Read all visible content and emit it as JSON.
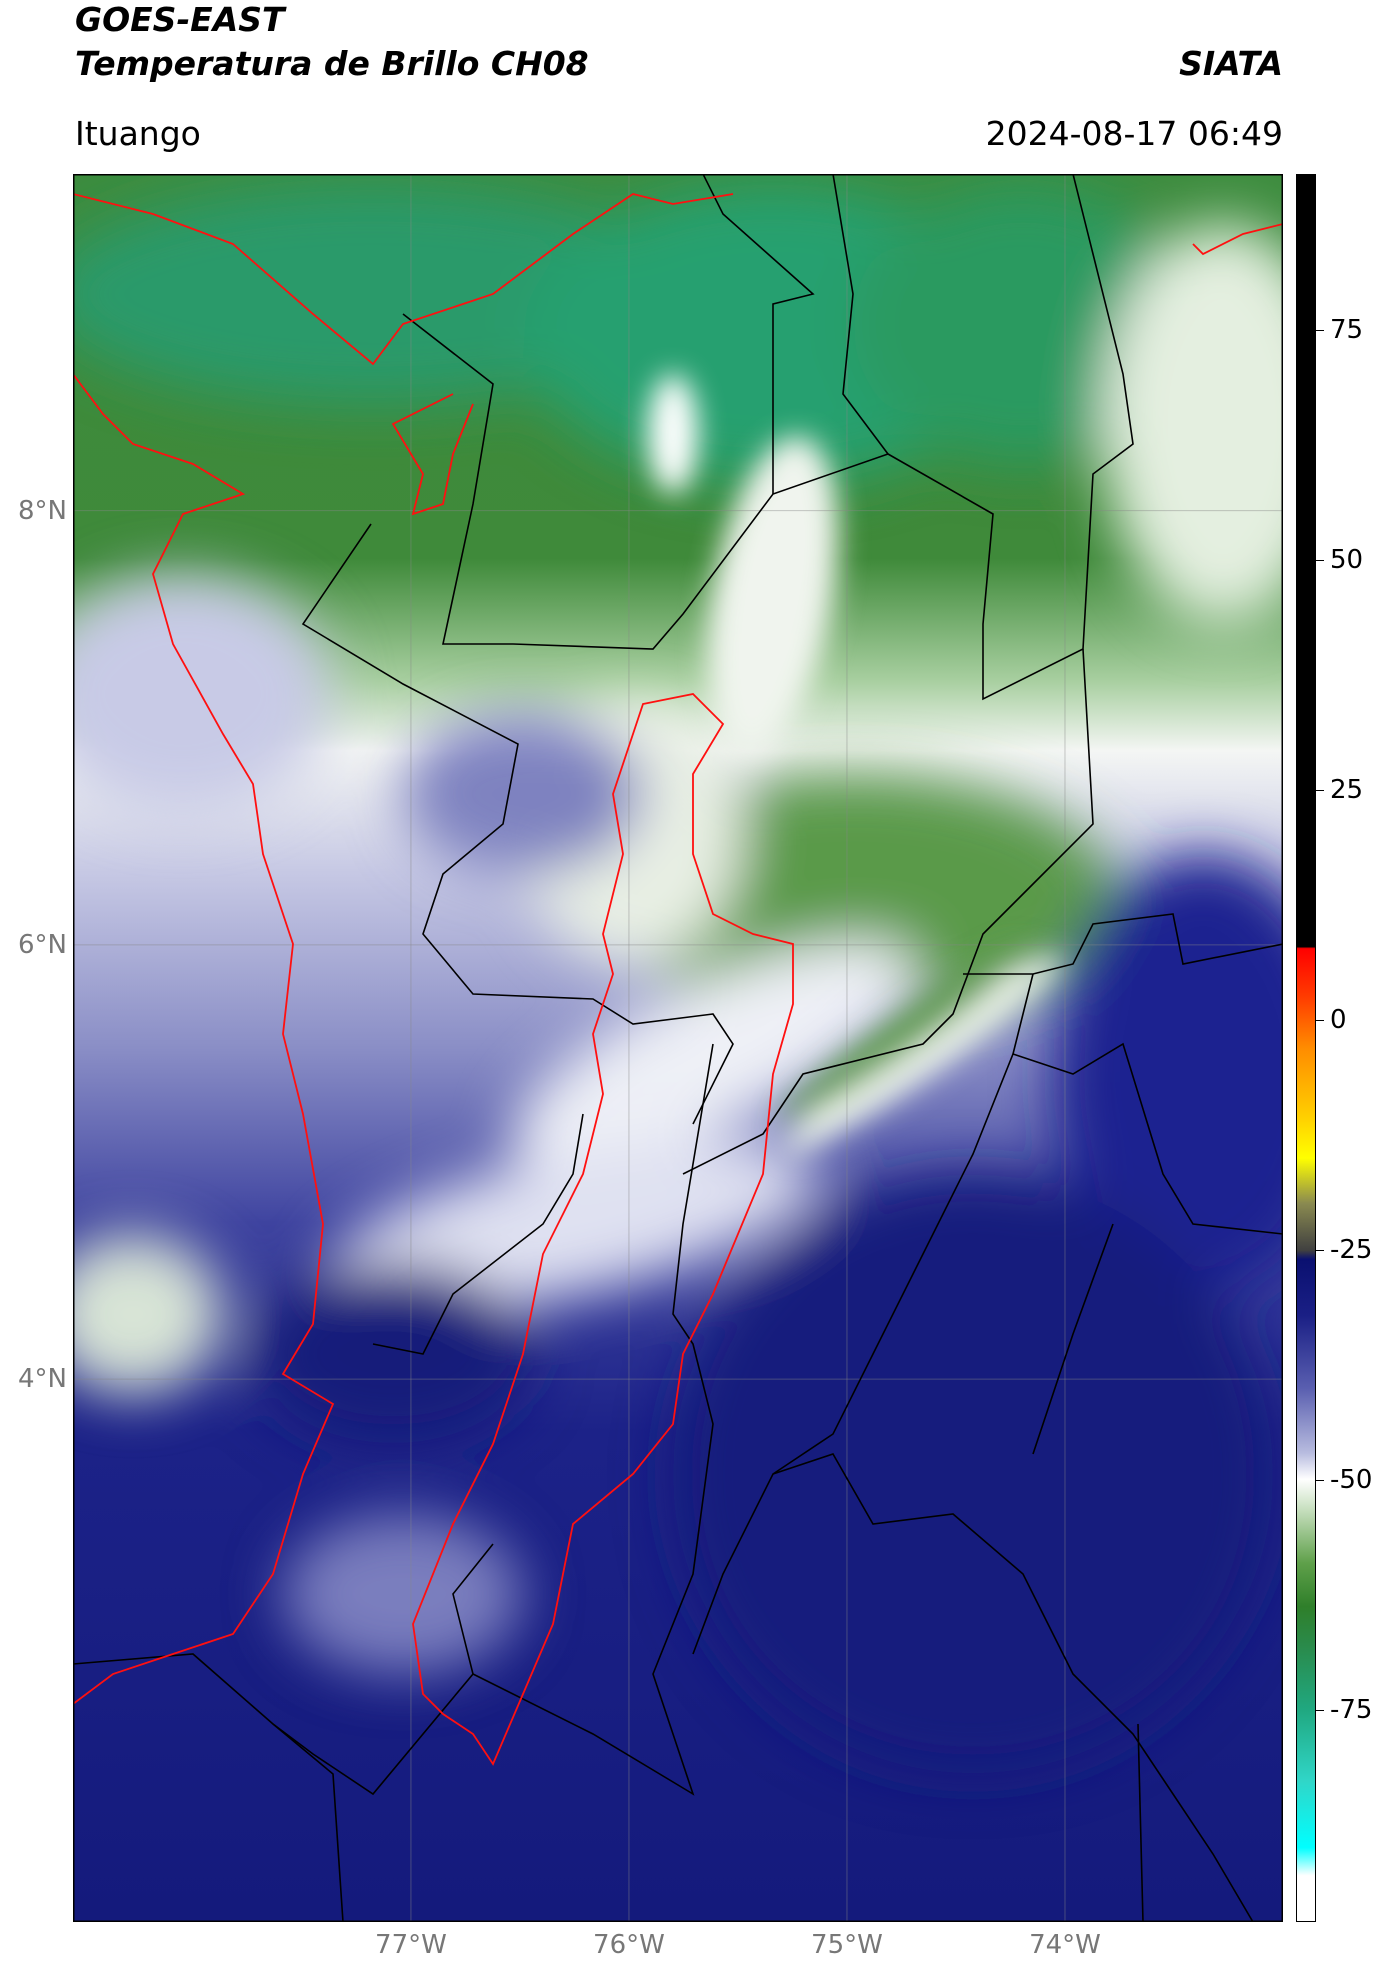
{
  "header": {
    "title": "GOES-EAST",
    "subtitle": "Temperatura de Brillo CH08",
    "brand": "SIATA",
    "location": "Ituango",
    "datetime": "2024-08-17 06:49"
  },
  "map": {
    "xlim": [
      -78.55,
      -73.0
    ],
    "ylim": [
      1.5,
      9.55
    ],
    "xticks": [
      {
        "value": -77,
        "label": "77°W"
      },
      {
        "value": -76,
        "label": "76°W"
      },
      {
        "value": -75,
        "label": "75°W"
      },
      {
        "value": -74,
        "label": "74°W"
      }
    ],
    "yticks": [
      {
        "value": 8,
        "label": "8°N"
      },
      {
        "value": 6,
        "label": "6°N"
      },
      {
        "value": 4,
        "label": "4°N"
      }
    ],
    "grid": true
  },
  "colorbar": {
    "clim": [
      -98,
      92
    ],
    "ticks": [
      75,
      50,
      25,
      0,
      -25,
      -50,
      -75
    ]
  }
}
